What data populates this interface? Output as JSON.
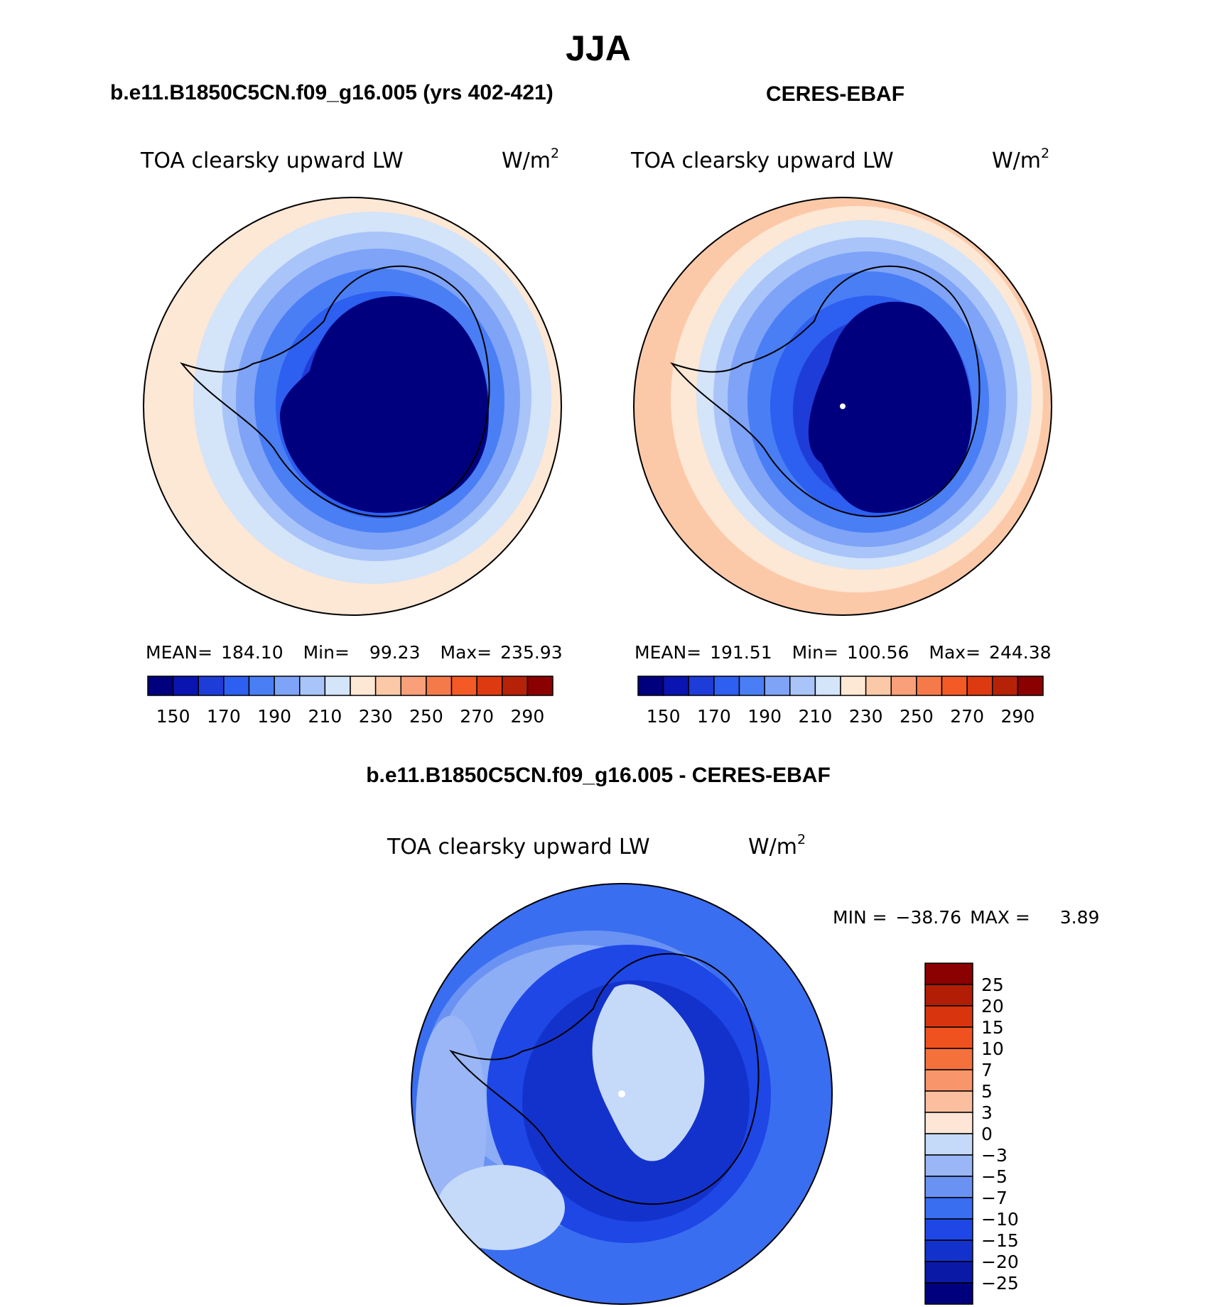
{
  "figure": {
    "season": "JJA"
  },
  "colors": {
    "model_levels": [
      "#00007f",
      "#0a14b0",
      "#1e3cd8",
      "#2d5ff0",
      "#4a7ef5",
      "#7ea3f7",
      "#a9c4f8",
      "#d4e4f9",
      "#fde7d5",
      "#fcc9a8",
      "#f9a07a",
      "#f57a4a",
      "#f45a25",
      "#dd3a12",
      "#b62208",
      "#8b0000"
    ],
    "diff_levels": [
      "#00007f",
      "#0a1aa6",
      "#1332cc",
      "#1e47e6",
      "#3a6ef0",
      "#6a92f3",
      "#9ab6f6",
      "#c5d9f9",
      "#fde6d6",
      "#fbbfa0",
      "#f8956a",
      "#f5713c",
      "#f0521f",
      "#d8350f",
      "#b21d06",
      "#8b0000"
    ],
    "coast": "#000000"
  },
  "chart_data": [
    {
      "type": "contour-map",
      "projection": "south-polar-stereographic",
      "title": "b.e11.B1850C5CN.f09_g16.005 (yrs 402-421)",
      "field": "TOA clearsky upward LW",
      "units": "W/m",
      "units_exp": "2",
      "stats": {
        "mean_label": "MEAN=",
        "mean": "184.10",
        "min_label": "Min=",
        "min": "99.23",
        "max_label": "Max=",
        "max": "235.93"
      },
      "colorbar_ticks": [
        "150",
        "170",
        "190",
        "210",
        "230",
        "250",
        "270",
        "290"
      ],
      "contour_levels": [
        140,
        150,
        160,
        170,
        180,
        190,
        200,
        210,
        220,
        230,
        240,
        250,
        260,
        270,
        280,
        290
      ],
      "rings_by_level": [
        {
          "level": "<140",
          "ring": 8
        },
        {
          "level": "190-200",
          "ring": 4
        },
        {
          "level": "220-230",
          "ring": 1
        }
      ]
    },
    {
      "type": "contour-map",
      "projection": "south-polar-stereographic",
      "title": "CERES-EBAF",
      "field": "TOA clearsky upward LW",
      "units": "W/m",
      "units_exp": "2",
      "stats": {
        "mean_label": "MEAN=",
        "mean": "191.51",
        "min_label": "Min=",
        "min": "100.56",
        "max_label": "Max=",
        "max": "244.38"
      },
      "colorbar_ticks": [
        "150",
        "170",
        "190",
        "210",
        "230",
        "250",
        "270",
        "290"
      ],
      "contour_levels": [
        140,
        150,
        160,
        170,
        180,
        190,
        200,
        210,
        220,
        230,
        240,
        250,
        260,
        270,
        280,
        290
      ]
    },
    {
      "type": "contour-map",
      "projection": "south-polar-stereographic",
      "title": "b.e11.B1850C5CN.f09_g16.005 - CERES-EBAF",
      "field": "TOA clearsky upward LW",
      "units": "W/m",
      "units_exp": "2",
      "stats": {
        "min_label": "MIN =",
        "min": "−38.76",
        "max_label": "MAX =",
        "max": "3.89"
      },
      "colorbar_ticks": [
        "25",
        "20",
        "15",
        "10",
        "7",
        "5",
        "3",
        "0",
        "−3",
        "−5",
        "−7",
        "−10",
        "−15",
        "−20",
        "−25"
      ]
    }
  ]
}
